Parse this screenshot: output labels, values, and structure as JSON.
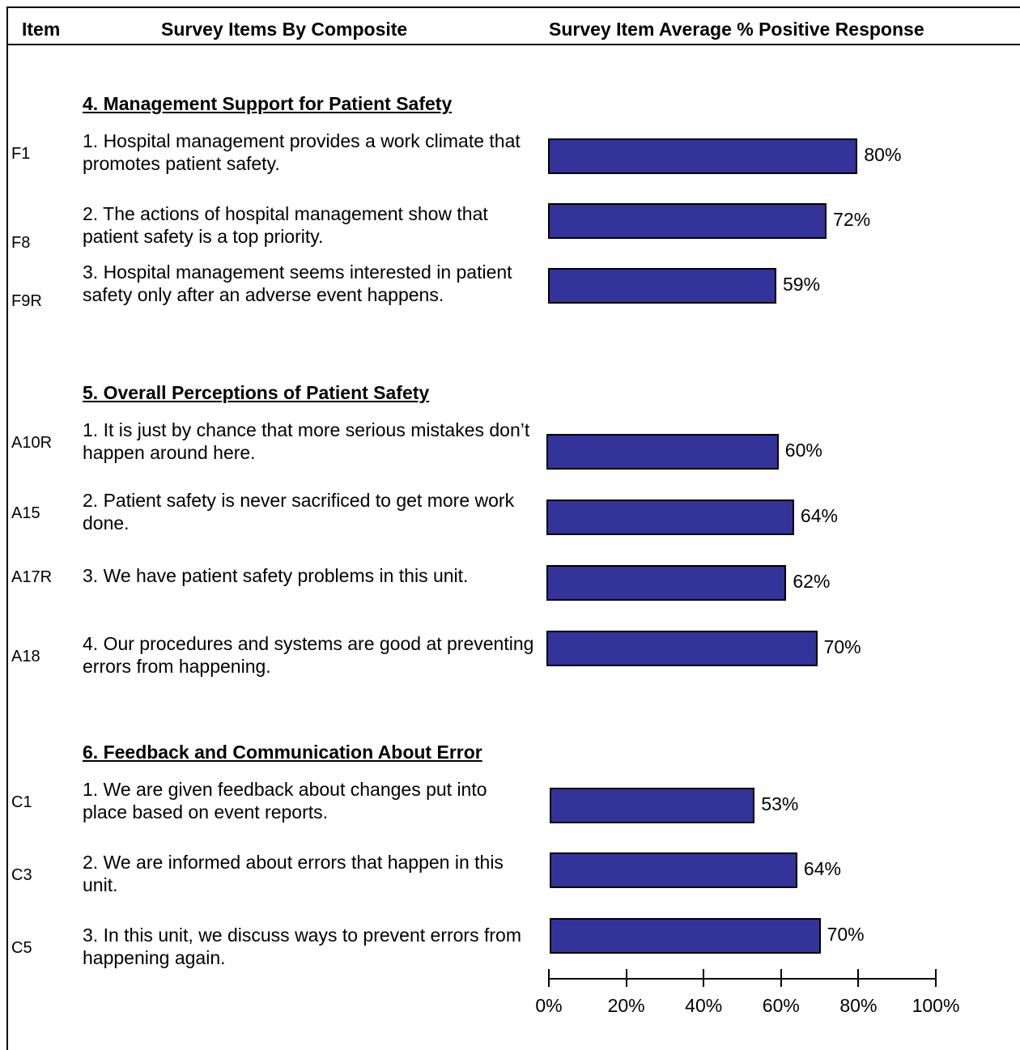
{
  "header": {
    "col_item": "Item",
    "col_survey_items": "Survey Items By Composite",
    "col_response": "Survey Item Average % Positive Response"
  },
  "chart_data": {
    "type": "bar",
    "orientation": "horizontal",
    "xlim": [
      0,
      100
    ],
    "x_ticks": [
      "0%",
      "20%",
      "40%",
      "60%",
      "80%",
      "100%"
    ],
    "bar_color": "#333399",
    "sections": [
      {
        "title": "4.  Management Support for Patient Safety",
        "items": [
          {
            "code": "F1",
            "text": "1. Hospital management provides a work climate that promotes patient safety.",
            "value": 80,
            "label": "80%"
          },
          {
            "code": "F8",
            "text": "2. The actions of hospital management show that patient safety is a top priority.",
            "value": 72,
            "label": "72%"
          },
          {
            "code": "F9R",
            "text": "3. Hospital management seems interested in patient safety only after an adverse event happens.",
            "value": 59,
            "label": "59%"
          }
        ]
      },
      {
        "title": "5.  Overall Perceptions of Patient Safety",
        "items": [
          {
            "code": "A10R",
            "text": "1. It is just by chance that more serious mistakes don’t happen around here.",
            "value": 60,
            "label": "60%"
          },
          {
            "code": "A15",
            "text": "2. Patient safety is never sacrificed to get more work done.",
            "value": 64,
            "label": "64%"
          },
          {
            "code": "A17R",
            "text": "3. We have patient safety problems in this unit.",
            "value": 62,
            "label": "62%"
          },
          {
            "code": "A18",
            "text": "4. Our procedures and systems are good at preventing errors from happening.",
            "value": 70,
            "label": "70%"
          }
        ]
      },
      {
        "title": "6.  Feedback and Communication About Error",
        "items": [
          {
            "code": "C1",
            "text": "1. We are given feedback about changes put into place based on event reports.",
            "value": 53,
            "label": "53%"
          },
          {
            "code": "C3",
            "text": "2. We are informed about errors that happen in this unit.",
            "value": 64,
            "label": "64%"
          },
          {
            "code": "C5",
            "text": "3. In this unit, we discuss ways to prevent errors from happening again.",
            "value": 70,
            "label": "70%"
          }
        ]
      }
    ]
  }
}
